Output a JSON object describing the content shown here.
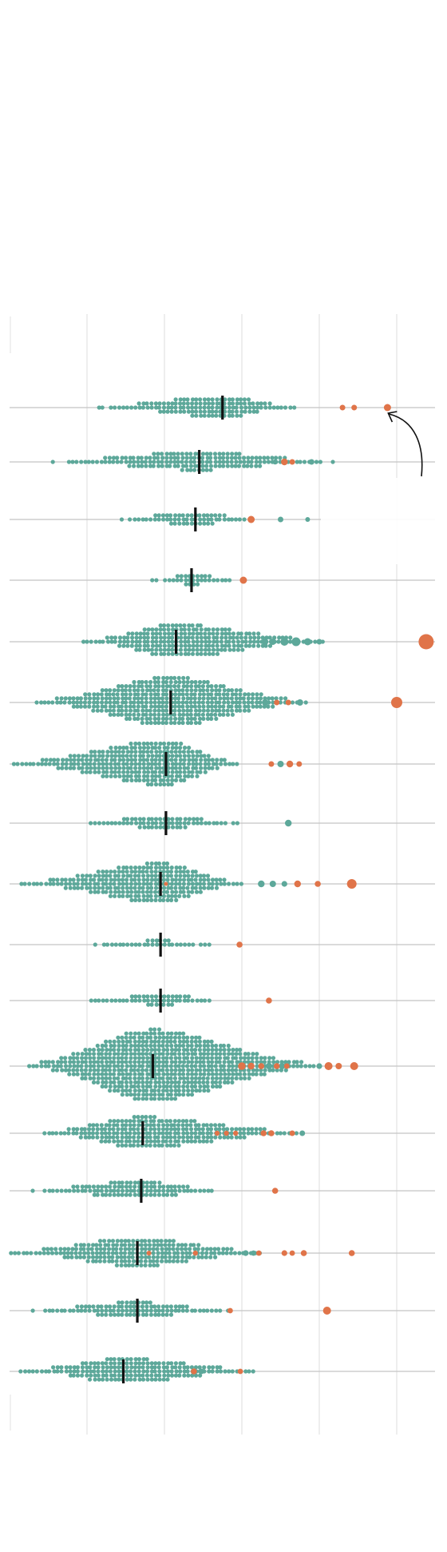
{
  "chart_data": {
    "type": "scatter",
    "subtype": "beeswarm",
    "title": "",
    "xlabel": "",
    "ylabel": "",
    "xlim": [
      0,
      5.5
    ],
    "gridlines_x": [
      1,
      2,
      3,
      4,
      5
    ],
    "grid": true,
    "legend": "none",
    "colors": {
      "base": "#5da89a",
      "highlight": "#e07449",
      "median": "#111111",
      "baseline": "#c4c4c4",
      "grid": "#dedede"
    },
    "rows": [
      {
        "median": 2.75,
        "range": [
          1.15,
          3.7
        ],
        "spread": 1.0,
        "density": 1.0,
        "highlights": [
          {
            "x": 4.3,
            "r": 3.5
          },
          {
            "x": 4.45,
            "r": 3.5
          },
          {
            "x": 4.88,
            "r": 4.5
          }
        ],
        "big": []
      },
      {
        "median": 2.45,
        "range": [
          0.5,
          4.2
        ],
        "spread": 1.0,
        "density": 0.85,
        "highlights": [
          {
            "x": 3.55,
            "r": 4.2
          },
          {
            "x": 3.65,
            "r": 3.5
          }
        ],
        "big": [
          {
            "x": 3.9,
            "r": 3.5
          },
          {
            "x": 3.43,
            "r": 3.2
          }
        ]
      },
      {
        "median": 2.4,
        "range": [
          1.35,
          3.2
        ],
        "spread": 0.8,
        "density": 0.6,
        "highlights": [
          {
            "x": 3.12,
            "r": 4.5
          }
        ],
        "big": [
          {
            "x": 3.5,
            "r": 3.5
          },
          {
            "x": 3.85,
            "r": 3.0
          }
        ]
      },
      {
        "median": 2.35,
        "range": [
          1.85,
          2.97
        ],
        "spread": 0.5,
        "density": 0.5,
        "highlights": [
          {
            "x": 3.02,
            "r": 4.5
          }
        ],
        "big": []
      },
      {
        "median": 2.15,
        "range": [
          0.95,
          4.1
        ],
        "spread": 1.4,
        "density": 1.5,
        "highlights": [
          {
            "x": 5.38,
            "r": 9.5
          }
        ],
        "big": [
          {
            "x": 3.4,
            "r": 4.0
          },
          {
            "x": 3.55,
            "r": 5.0
          },
          {
            "x": 3.7,
            "r": 5.5
          },
          {
            "x": 3.85,
            "r": 4.5
          },
          {
            "x": 3.3,
            "r": 4.0
          },
          {
            "x": 4.0,
            "r": 3.5
          }
        ]
      },
      {
        "median": 2.08,
        "range": [
          0.35,
          3.85
        ],
        "spread": 2.2,
        "density": 2.2,
        "highlights": [
          {
            "x": 5.0,
            "r": 7.0
          },
          {
            "x": 3.45,
            "r": 3.5
          },
          {
            "x": 3.6,
            "r": 3.5
          }
        ],
        "big": [
          {
            "x": 3.75,
            "r": 4.0
          },
          {
            "x": 3.3,
            "r": 4.0
          }
        ]
      },
      {
        "median": 2.02,
        "range": [
          0.05,
          2.95
        ],
        "spread": 2.1,
        "density": 2.0,
        "highlights": [
          {
            "x": 3.38,
            "r": 3.5
          },
          {
            "x": 3.62,
            "r": 4.2
          },
          {
            "x": 3.74,
            "r": 3.5
          }
        ],
        "big": [
          {
            "x": 3.5,
            "r": 4.0
          }
        ]
      },
      {
        "median": 2.02,
        "range": [
          0.95,
          2.95
        ],
        "spread": 0.6,
        "density": 0.6,
        "highlights": [],
        "big": [
          {
            "x": 3.6,
            "r": 4.2
          }
        ]
      },
      {
        "median": 1.95,
        "range": [
          0.15,
          3.0
        ],
        "spread": 1.9,
        "density": 1.8,
        "highlights": [
          {
            "x": 3.72,
            "r": 4.2
          },
          {
            "x": 3.98,
            "r": 3.8
          },
          {
            "x": 4.42,
            "r": 6.0
          },
          {
            "x": 2.02,
            "r": 2.5
          }
        ],
        "big": [
          {
            "x": 3.25,
            "r": 4.2
          },
          {
            "x": 3.4,
            "r": 4.0
          },
          {
            "x": 3.55,
            "r": 3.6
          }
        ]
      },
      {
        "median": 1.95,
        "range": [
          0.95,
          2.6
        ],
        "spread": 0.3,
        "density": 0.3,
        "highlights": [
          {
            "x": 2.97,
            "r": 3.8
          }
        ],
        "big": []
      },
      {
        "median": 1.95,
        "range": [
          1.05,
          2.8
        ],
        "spread": 0.5,
        "density": 0.5,
        "highlights": [
          {
            "x": 3.35,
            "r": 3.8
          }
        ],
        "big": []
      },
      {
        "median": 1.85,
        "range": [
          0.25,
          3.95
        ],
        "spread": 3.4,
        "density": 3.2,
        "highlights": [
          {
            "x": 3.0,
            "r": 4.8
          },
          {
            "x": 3.12,
            "r": 4.2
          },
          {
            "x": 3.25,
            "r": 3.8
          },
          {
            "x": 3.45,
            "r": 3.8
          },
          {
            "x": 3.58,
            "r": 3.5
          },
          {
            "x": 4.12,
            "r": 5.0
          },
          {
            "x": 4.25,
            "r": 4.0
          },
          {
            "x": 4.45,
            "r": 5.0
          }
        ],
        "big": [
          {
            "x": 3.35,
            "r": 4.0
          },
          {
            "x": 3.52,
            "r": 4.0
          },
          {
            "x": 4.0,
            "r": 3.6
          }
        ]
      },
      {
        "median": 1.72,
        "range": [
          0.4,
          3.8
        ],
        "spread": 1.4,
        "density": 1.4,
        "highlights": [
          {
            "x": 2.68,
            "r": 3.2
          },
          {
            "x": 2.8,
            "r": 3.2
          },
          {
            "x": 2.92,
            "r": 3.2
          },
          {
            "x": 3.28,
            "r": 3.8
          },
          {
            "x": 3.38,
            "r": 3.8
          },
          {
            "x": 3.65,
            "r": 3.5
          }
        ],
        "big": [
          {
            "x": 3.78,
            "r": 3.5
          }
        ]
      },
      {
        "median": 1.7,
        "range": [
          0.25,
          2.7
        ],
        "spread": 0.9,
        "density": 0.8,
        "highlights": [
          {
            "x": 3.43,
            "r": 3.8
          }
        ],
        "big": []
      },
      {
        "median": 1.65,
        "range": [
          0.02,
          3.3
        ],
        "spread": 1.3,
        "density": 1.3,
        "highlights": [
          {
            "x": 1.8,
            "r": 3.0
          },
          {
            "x": 2.4,
            "r": 3.2
          },
          {
            "x": 3.22,
            "r": 3.4
          },
          {
            "x": 3.55,
            "r": 3.6
          },
          {
            "x": 3.65,
            "r": 3.4
          },
          {
            "x": 3.8,
            "r": 3.8
          },
          {
            "x": 4.42,
            "r": 3.8
          }
        ],
        "big": [
          {
            "x": 3.05,
            "r": 3.6
          },
          {
            "x": 3.15,
            "r": 3.4
          }
        ]
      },
      {
        "median": 1.65,
        "range": [
          0.3,
          2.85
        ],
        "spread": 0.8,
        "density": 0.7,
        "highlights": [
          {
            "x": 2.85,
            "r": 3.4
          },
          {
            "x": 4.1,
            "r": 5.0
          }
        ],
        "big": []
      },
      {
        "median": 1.47,
        "range": [
          0.15,
          3.3
        ],
        "spread": 1.2,
        "density": 1.1,
        "highlights": [
          {
            "x": 2.38,
            "r": 3.8
          },
          {
            "x": 2.98,
            "r": 3.4
          }
        ],
        "big": [
          {
            "x": 2.48,
            "r": 3.4
          }
        ]
      }
    ]
  }
}
